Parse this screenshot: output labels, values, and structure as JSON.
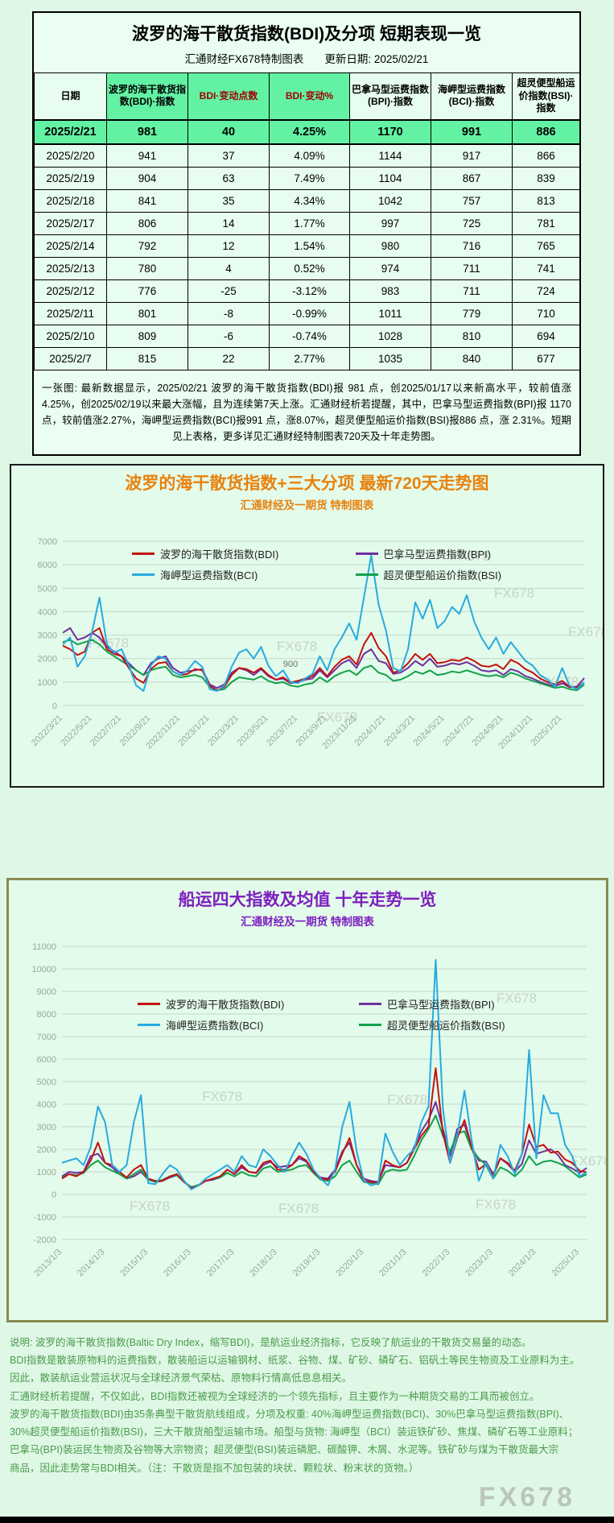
{
  "page": {
    "watermark": "FX678"
  },
  "colors": {
    "accent_green": "#63f2a4",
    "pale_green": "#e7fdef",
    "header_red": "#a00000",
    "chart1_title_orange": "#e8820e",
    "chart2_title_purple": "#7d1fc0",
    "explanation_green": "#4a9a4a",
    "bdi_red": "#c41111",
    "bpi_purple": "#7030a0",
    "bci_blue": "#27aae1",
    "bsi_green": "#12a14b"
  },
  "table_section": {
    "title": "波罗的海干散货指数(BDI)及分项 短期表现一览",
    "subtitle_left": "汇通财经FX678特制图表",
    "subtitle_right": "更新日期: 2025/02/21",
    "headers": [
      "日期",
      "波罗的海干散货指数(BDI)·指数",
      "BDI·变动点数",
      "BDI·变动%",
      "巴拿马型运费指数(BPI)·指数",
      "海岬型运费指数(BCI)·指数",
      "超灵便型船运价指数(BSI)·指数"
    ],
    "header_red_cols": [
      2,
      3
    ],
    "rows": [
      [
        "2025/2/21",
        "981",
        "40",
        "4.25%",
        "1170",
        "991",
        "886"
      ],
      [
        "2025/2/20",
        "941",
        "37",
        "4.09%",
        "1144",
        "917",
        "866"
      ],
      [
        "2025/2/19",
        "904",
        "63",
        "7.49%",
        "1104",
        "867",
        "839"
      ],
      [
        "2025/2/18",
        "841",
        "35",
        "4.34%",
        "1042",
        "757",
        "813"
      ],
      [
        "2025/2/17",
        "806",
        "14",
        "1.77%",
        "997",
        "725",
        "781"
      ],
      [
        "2025/2/14",
        "792",
        "12",
        "1.54%",
        "980",
        "716",
        "765"
      ],
      [
        "2025/2/13",
        "780",
        "4",
        "0.52%",
        "974",
        "711",
        "741"
      ],
      [
        "2025/2/12",
        "776",
        "-25",
        "-3.12%",
        "983",
        "711",
        "724"
      ],
      [
        "2025/2/11",
        "801",
        "-8",
        "-0.99%",
        "1011",
        "779",
        "710"
      ],
      [
        "2025/2/10",
        "809",
        "-6",
        "-0.74%",
        "1028",
        "810",
        "694"
      ],
      [
        "2025/2/7",
        "815",
        "22",
        "2.77%",
        "1035",
        "840",
        "677"
      ]
    ],
    "note": "一张图: 最新数据显示，2025/02/21 波罗的海干散货指数(BDI)报 981 点，创2025/01/17以来新高水平，较前值涨 4.25%，创2025/02/19以来最大涨幅，且为连续第7天上涨。汇通财经析若提醒，其中，巴拿马型运费指数(BPI)报 1170 点，较前值涨2.27%，海岬型运费指数(BCI)报991 点，涨8.07%，超灵便型船运价指数(BSI)报886 点，涨 2.31%。短期见上表格，更多详见汇通财经特制图表720天及十年走势图。"
  },
  "chart_data": [
    {
      "id": "chart1",
      "type": "line",
      "title": "波罗的海干散货指数+三大分项  最新720天走势图",
      "subtitle": "汇通财经及一期货 特制图表",
      "ylim": [
        0,
        7000
      ],
      "ytick_step": 1000,
      "grid": true,
      "legend_position": "top-inside",
      "x_labels": [
        "2022/3/21",
        "2022/5/21",
        "2022/7/21",
        "2022/9/21",
        "2022/11/21",
        "2023/1/21",
        "2023/3/21",
        "2023/5/21",
        "2023/7/21",
        "2023/9/21",
        "2023/11/21",
        "2024/1/21",
        "2024/3/21",
        "2024/5/21",
        "2024/7/21",
        "2024/9/21",
        "2024/11/21",
        "2025/1/21"
      ],
      "x_label_every": 4,
      "annotations": [
        {
          "text": "900",
          "xi": 30,
          "y": 1650
        }
      ],
      "draw_order": [
        1,
        3,
        0,
        2
      ],
      "series": [
        {
          "name": "波罗的海干散货指数(BDI)",
          "color": "#c41111",
          "values": [
            2550,
            2400,
            2150,
            2300,
            3100,
            3300,
            2400,
            2200,
            2100,
            1600,
            1150,
            965,
            1550,
            1800,
            1850,
            1450,
            1300,
            1350,
            1550,
            1500,
            840,
            650,
            800,
            1300,
            1600,
            1550,
            1400,
            1600,
            1300,
            1100,
            1200,
            980,
            1050,
            1150,
            1250,
            1600,
            1250,
            1650,
            1950,
            2100,
            1750,
            2600,
            3100,
            2450,
            2100,
            1400,
            1500,
            1800,
            2200,
            1950,
            2200,
            1800,
            1850,
            1950,
            1900,
            2050,
            1900,
            1700,
            1650,
            1750,
            1550,
            1950,
            1800,
            1550,
            1400,
            1150,
            1000,
            900,
            1050,
            800,
            760,
            981
          ]
        },
        {
          "name": "巴拿马型运费指数(BPI)",
          "color": "#7030a0",
          "values": [
            3100,
            3300,
            2800,
            2900,
            3100,
            2900,
            2500,
            2300,
            2100,
            1800,
            1500,
            1300,
            1800,
            2000,
            2100,
            1600,
            1400,
            1450,
            1500,
            1550,
            900,
            750,
            900,
            1400,
            1600,
            1500,
            1300,
            1550,
            1250,
            1100,
            1150,
            950,
            1000,
            1100,
            1150,
            1500,
            1200,
            1500,
            1800,
            1950,
            1600,
            2200,
            2400,
            1900,
            1800,
            1350,
            1400,
            1600,
            1900,
            1700,
            2000,
            1650,
            1700,
            1800,
            1750,
            1850,
            1700,
            1500,
            1450,
            1500,
            1300,
            1550,
            1450,
            1250,
            1150,
            1000,
            900,
            820,
            950,
            780,
            800,
            1170
          ]
        },
        {
          "name": "海岬型运费指数(BCI)",
          "color": "#27aae1",
          "values": [
            2600,
            2900,
            1650,
            2100,
            3150,
            4600,
            2600,
            2250,
            2400,
            1700,
            850,
            620,
            1700,
            2100,
            2000,
            1450,
            1300,
            1500,
            1900,
            1650,
            700,
            620,
            850,
            1650,
            2250,
            2400,
            2000,
            2500,
            1700,
            1250,
            1500,
            1000,
            950,
            1150,
            1350,
            2100,
            1500,
            2400,
            2900,
            3500,
            2800,
            4600,
            6400,
            4300,
            3200,
            1600,
            1450,
            2400,
            4400,
            3700,
            4500,
            3300,
            3600,
            4200,
            3900,
            4700,
            3600,
            2900,
            2400,
            2900,
            2200,
            2700,
            2300,
            1900,
            1700,
            1300,
            1100,
            800,
            1600,
            850,
            700,
            991
          ]
        },
        {
          "name": "超灵便型船运价指数(BSI)",
          "color": "#12a14b",
          "values": [
            2700,
            2800,
            2600,
            2700,
            2800,
            2600,
            2300,
            2100,
            1900,
            1700,
            1500,
            1300,
            1500,
            1600,
            1650,
            1300,
            1200,
            1250,
            1300,
            1200,
            800,
            650,
            700,
            1000,
            1200,
            1150,
            1100,
            1250,
            1050,
            950,
            1000,
            850,
            800,
            900,
            950,
            1200,
            1000,
            1250,
            1400,
            1500,
            1300,
            1600,
            1700,
            1400,
            1300,
            1050,
            1100,
            1250,
            1450,
            1350,
            1500,
            1300,
            1350,
            1450,
            1400,
            1500,
            1400,
            1300,
            1250,
            1300,
            1200,
            1400,
            1300,
            1150,
            1050,
            950,
            850,
            750,
            800,
            700,
            650,
            886
          ]
        }
      ]
    },
    {
      "id": "chart2",
      "type": "line",
      "title": "船运四大指数及均值 十年走势一览",
      "subtitle": "汇通财经及一期货 特制图表",
      "ylim": [
        -2000,
        11000
      ],
      "ytick_step": 1000,
      "grid": true,
      "legend_position": "top-inside",
      "x_labels": [
        "2013/1/3",
        "2014/1/3",
        "2015/1/3",
        "2016/1/3",
        "2017/1/3",
        "2018/1/3",
        "2019/1/3",
        "2020/1/3",
        "2021/1/3",
        "2022/1/3",
        "2023/1/3",
        "2024/1/3",
        "2025/1/3"
      ],
      "x_label_every": 6,
      "annotations": [],
      "draw_order": [
        1,
        3,
        0,
        2
      ],
      "series": [
        {
          "name": "波罗的海干散货指数(BDI)",
          "color": "#c41111",
          "values": [
            700,
            900,
            800,
            1000,
            1500,
            2300,
            1400,
            1300,
            1000,
            750,
            1100,
            1300,
            700,
            600,
            600,
            800,
            900,
            550,
            290,
            400,
            600,
            700,
            800,
            1100,
            900,
            1300,
            1000,
            950,
            1400,
            1500,
            1100,
            1100,
            1300,
            1700,
            1500,
            1000,
            700,
            650,
            1000,
            1800,
            2500,
            1300,
            600,
            550,
            500,
            1500,
            1300,
            1200,
            1400,
            2000,
            2600,
            3000,
            5600,
            2700,
            1400,
            2500,
            3300,
            2100,
            1100,
            1350,
            840,
            1600,
            1400,
            1050,
            1800,
            3100,
            2100,
            2200,
            1850,
            1900,
            1550,
            1400,
            1050,
            981
          ]
        },
        {
          "name": "巴拿马型运费指数(BPI)",
          "color": "#7030a0",
          "values": [
            800,
            1000,
            950,
            1000,
            1700,
            1800,
            1400,
            1200,
            900,
            700,
            800,
            1000,
            650,
            550,
            600,
            750,
            850,
            550,
            300,
            400,
            600,
            650,
            750,
            1100,
            900,
            1200,
            1000,
            950,
            1300,
            1450,
            1200,
            1250,
            1300,
            1600,
            1450,
            1000,
            750,
            700,
            1100,
            1900,
            2300,
            1300,
            700,
            600,
            550,
            1300,
            1250,
            1200,
            1400,
            2100,
            2800,
            3300,
            4100,
            2900,
            1700,
            2900,
            3100,
            2100,
            1500,
            1450,
            900,
            1600,
            1350,
            1000,
            1350,
            2400,
            1800,
            1900,
            2000,
            1750,
            1300,
            1150,
            950,
            1170
          ]
        },
        {
          "name": "海岬型运费指数(BCI)",
          "color": "#27aae1",
          "values": [
            1400,
            1500,
            1600,
            1300,
            2100,
            3900,
            3200,
            1300,
            1000,
            1300,
            3200,
            4400,
            500,
            450,
            900,
            1300,
            1100,
            600,
            220,
            400,
            700,
            900,
            1100,
            1300,
            1000,
            1700,
            1300,
            1200,
            2000,
            1700,
            1300,
            1000,
            1700,
            2300,
            1800,
            1100,
            700,
            400,
            1100,
            3000,
            4100,
            1900,
            600,
            400,
            500,
            2700,
            1900,
            1300,
            1700,
            2000,
            3200,
            3900,
            10400,
            3800,
            1400,
            2600,
            4600,
            2400,
            600,
            1400,
            700,
            2200,
            1700,
            900,
            1800,
            6400,
            1600,
            4400,
            3600,
            3600,
            2200,
            1700,
            800,
            991
          ]
        },
        {
          "name": "超灵便型船运价指数(BSI)",
          "color": "#12a14b",
          "values": [
            750,
            900,
            850,
            950,
            1300,
            1500,
            1200,
            1050,
            900,
            700,
            900,
            1100,
            650,
            550,
            650,
            800,
            850,
            550,
            320,
            420,
            600,
            700,
            750,
            950,
            800,
            1000,
            850,
            800,
            1150,
            1250,
            1000,
            1050,
            1100,
            1250,
            1300,
            950,
            650,
            600,
            800,
            1300,
            1500,
            1000,
            550,
            500,
            450,
            1000,
            1100,
            1050,
            1100,
            1700,
            2400,
            2900,
            3500,
            2600,
            1900,
            2700,
            2800,
            2000,
            1600,
            1300,
            700,
            1200,
            1050,
            800,
            1100,
            1700,
            1300,
            1450,
            1500,
            1400,
            1250,
            1000,
            750,
            886
          ]
        }
      ]
    }
  ],
  "explanation": {
    "lines": [
      "说明: 波罗的海干散货指数(Baltic Dry Index，缩写BDI)，是航运业经济指标，它反映了航运业的干散货交易量的动态。",
      "BDI指数是散装原物料的运费指数，散装船运以运输钢材、纸浆、谷物、煤、矿砂、磷矿石、铝矾土等民生物资及工业原料为主。",
      "因此，散装航运业营运状况与全球经济景气荣枯、原物料行情高低息息相关。",
      "汇通财经析若提醒，不仅如此，BDI指数还被视为全球经济的一个领先指标，且主要作为一种期货交易的工具而被创立。",
      "波罗的海干散货指数(BDI)由35条典型干散货航线组成，分项及权重: 40%海岬型运费指数(BCI)、30%巴拿马型运费指数(BPI)、",
      "30%超灵便型船运价指数(BSI)，三大干散货船型运输市场。船型与货物: 海岬型（BCI）装运铁矿砂、焦煤、磷矿石等工业原料；",
      "巴拿马(BPI)装运民生物资及谷物等大宗物资；超灵便型(BSI)装运磷肥、碳酸钾、木屑、水泥等。铁矿砂与煤为干散货最大宗",
      "商品，因此走势常与BDI相关。（注：干散货是指不加包装的块状、颗粒状、粉末状的货物。）"
    ]
  }
}
